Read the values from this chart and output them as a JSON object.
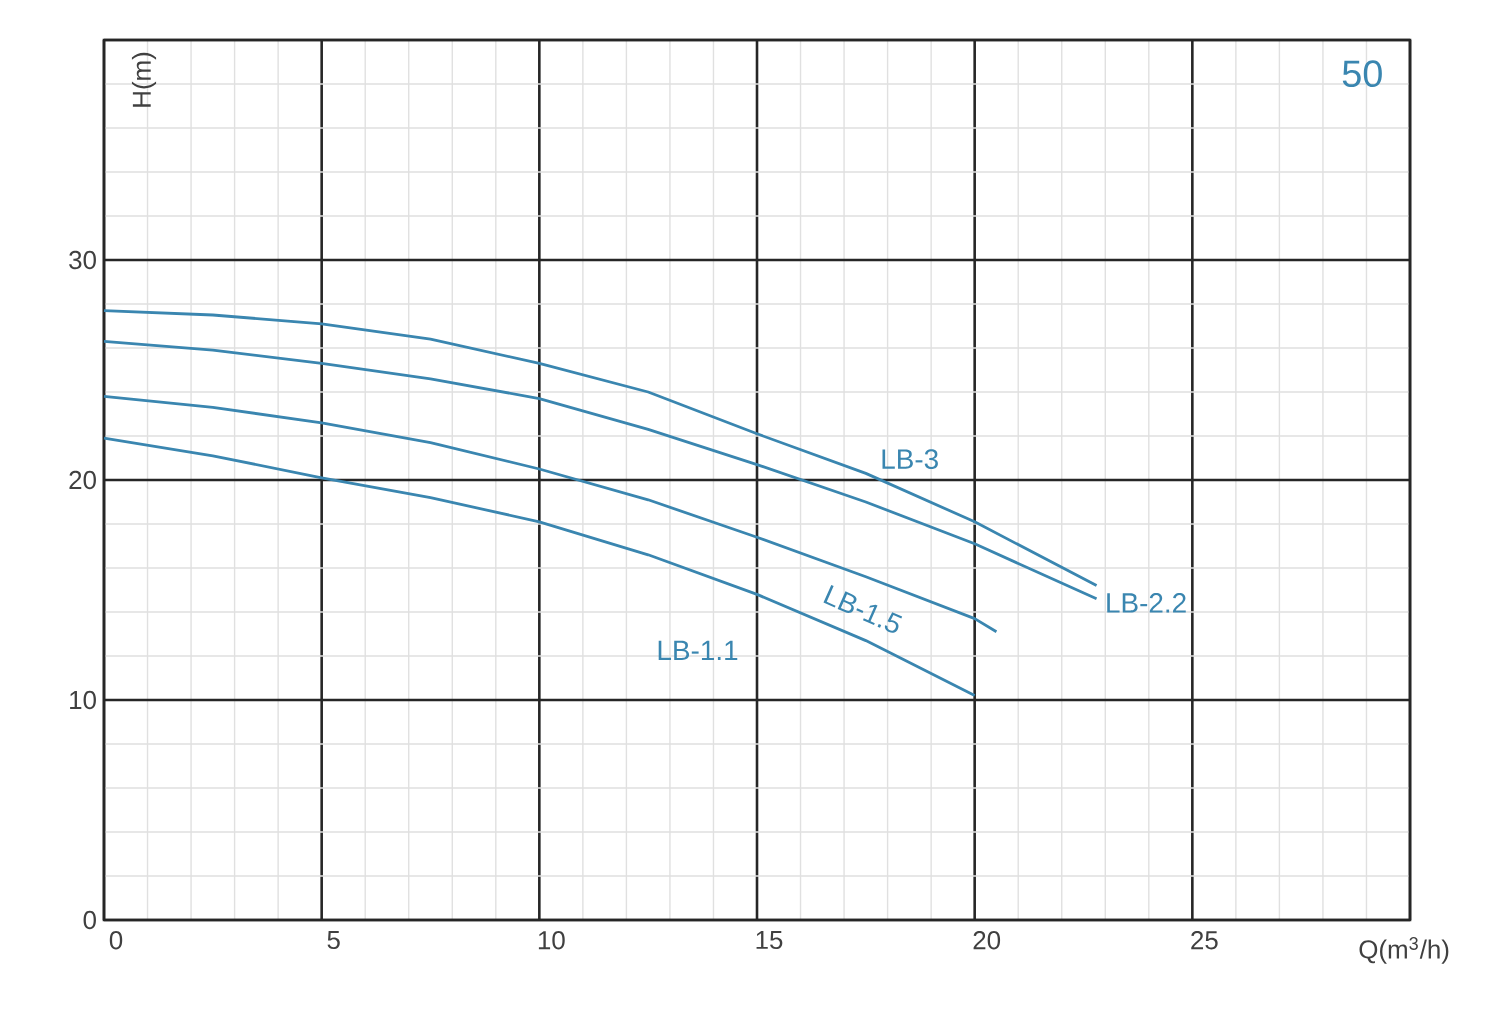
{
  "chart_data": {
    "type": "line",
    "xlabel": "Q(m$^{3}$/h)",
    "ylabel": "H(m)",
    "annotations": [
      "50"
    ],
    "x": [
      0,
      2.5,
      5,
      7.5,
      10,
      12.5,
      15,
      17.5,
      20,
      22.8
    ],
    "series": [
      {
        "name": "LB-3",
        "color": "#3a86b0",
        "values": [
          27.7,
          27.5,
          27.1,
          26.4,
          25.3,
          24.0,
          22.1,
          20.3,
          18.1,
          15.2
        ]
      },
      {
        "name": "LB-2.2",
        "color": "#3a86b0",
        "values": [
          26.3,
          25.9,
          25.3,
          24.6,
          23.7,
          22.3,
          20.7,
          19.0,
          17.1,
          14.6
        ]
      },
      {
        "name": "LB-1.5",
        "color": "#3a86b0",
        "x": [
          0,
          2.5,
          5,
          7.5,
          10,
          12.5,
          15,
          17.5,
          20,
          20.5
        ],
        "values": [
          23.8,
          23.3,
          22.6,
          21.7,
          20.5,
          19.1,
          17.4,
          15.6,
          13.7,
          13.1
        ]
      },
      {
        "name": "LB-1.1",
        "color": "#3a86b0",
        "x": [
          0,
          2.5,
          5,
          7.5,
          10,
          12.5,
          15,
          17.5,
          20
        ],
        "values": [
          21.9,
          21.1,
          20.1,
          19.2,
          18.1,
          16.6,
          14.8,
          12.7,
          10.2
        ]
      }
    ],
    "xlim": [
      0,
      30
    ],
    "ylim": [
      0,
      40
    ],
    "xticks": [
      0,
      5,
      10,
      15,
      20,
      25,
      {
        "value": 30,
        "label": null
      }
    ],
    "yticks": [
      0,
      10,
      20,
      30,
      {
        "value": 40,
        "label": null
      }
    ],
    "grid": true,
    "legend": false,
    "marker": "none",
    "line_style": "solid"
  }
}
